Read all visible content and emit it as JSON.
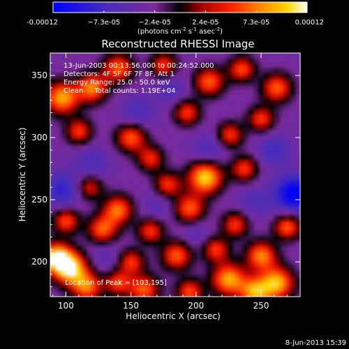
{
  "chart_data": {
    "type": "heatmap",
    "title": "Reconstructed RHESSI Image",
    "xlabel": "Heliocentric X (arcsec)",
    "ylabel": "Heliocentric Y (arcsec)",
    "xlim": [
      88,
      280
    ],
    "ylim": [
      172,
      368
    ],
    "xticks": [
      "100",
      "150",
      "200",
      "250"
    ],
    "yticks": [
      "200",
      "250",
      "300",
      "350"
    ],
    "colorbar": {
      "ticks": [
        "-0.00012",
        "−7.3e-05",
        "−2.4e-05",
        "2.4e-05",
        "7.3e-05",
        "0.00012"
      ],
      "label_html": "(photons cm<tspan baseline-shift='super' font-size='7'>-2</tspan> s<tspan baseline-shift='super' font-size='7'>-1</tspan> asec<tspan baseline-shift='super' font-size='7'>-2</tspan>)",
      "label_parts": [
        "(photons cm",
        "-2",
        " s",
        "-1",
        " asec",
        "-2",
        ")"
      ],
      "range": [
        -0.00012,
        0.00012
      ]
    },
    "annotations": [
      "13-Jun-2003 00:13:56.000 to 00:24:52.000",
      "Detectors: 4F 5F 6F 7F 8F, Att 1",
      "Energy Range: 25.0 - 50.0 keV",
      "Clean     Total counts: 1.19E+04",
      "Location of Peak = [103,195]"
    ],
    "peak": [
      103,
      195
    ],
    "sources": [
      {
        "x": 103,
        "y": 195,
        "v": 1.0,
        "s": 9
      },
      {
        "x": 92,
        "y": 204,
        "v": 0.85,
        "s": 8
      },
      {
        "x": 116,
        "y": 180,
        "v": 0.6,
        "s": 8
      },
      {
        "x": 97,
        "y": 332,
        "v": 0.75,
        "s": 9
      },
      {
        "x": 120,
        "y": 340,
        "v": 0.65,
        "s": 8
      },
      {
        "x": 140,
        "y": 356,
        "v": 0.55,
        "s": 8
      },
      {
        "x": 175,
        "y": 358,
        "v": 0.45,
        "s": 7
      },
      {
        "x": 210,
        "y": 345,
        "v": 0.55,
        "s": 8
      },
      {
        "x": 235,
        "y": 355,
        "v": 0.5,
        "s": 7
      },
      {
        "x": 262,
        "y": 340,
        "v": 0.55,
        "s": 8
      },
      {
        "x": 250,
        "y": 315,
        "v": 0.45,
        "s": 7
      },
      {
        "x": 193,
        "y": 320,
        "v": 0.45,
        "s": 7
      },
      {
        "x": 110,
        "y": 305,
        "v": 0.45,
        "s": 7
      },
      {
        "x": 150,
        "y": 300,
        "v": 0.55,
        "s": 8
      },
      {
        "x": 226,
        "y": 302,
        "v": 0.45,
        "s": 7
      },
      {
        "x": 165,
        "y": 283,
        "v": 0.4,
        "s": 7
      },
      {
        "x": 207,
        "y": 268,
        "v": 0.9,
        "s": 9
      },
      {
        "x": 178,
        "y": 262,
        "v": 0.45,
        "s": 7
      },
      {
        "x": 237,
        "y": 275,
        "v": 0.45,
        "s": 7
      },
      {
        "x": 118,
        "y": 260,
        "v": 0.35,
        "s": 7
      },
      {
        "x": 140,
        "y": 242,
        "v": 0.6,
        "s": 8
      },
      {
        "x": 195,
        "y": 243,
        "v": 0.55,
        "s": 8
      },
      {
        "x": 100,
        "y": 233,
        "v": 0.5,
        "s": 7
      },
      {
        "x": 128,
        "y": 226,
        "v": 0.55,
        "s": 8
      },
      {
        "x": 230,
        "y": 230,
        "v": 0.45,
        "s": 7
      },
      {
        "x": 270,
        "y": 228,
        "v": 0.55,
        "s": 7
      },
      {
        "x": 165,
        "y": 225,
        "v": 0.45,
        "s": 7
      },
      {
        "x": 185,
        "y": 205,
        "v": 0.55,
        "s": 8
      },
      {
        "x": 215,
        "y": 210,
        "v": 0.45,
        "s": 7
      },
      {
        "x": 250,
        "y": 205,
        "v": 0.65,
        "s": 8
      },
      {
        "x": 150,
        "y": 200,
        "v": 0.45,
        "s": 7
      },
      {
        "x": 225,
        "y": 186,
        "v": 0.75,
        "s": 9
      },
      {
        "x": 262,
        "y": 183,
        "v": 0.8,
        "s": 9
      },
      {
        "x": 245,
        "y": 176,
        "v": 0.7,
        "s": 8
      },
      {
        "x": 160,
        "y": 178,
        "v": 0.55,
        "s": 8
      },
      {
        "x": 195,
        "y": 176,
        "v": 0.5,
        "s": 7
      },
      {
        "x": 140,
        "y": 183,
        "v": 0.45,
        "s": 7
      },
      {
        "x": 275,
        "y": 255,
        "v": -0.8,
        "s": 10
      },
      {
        "x": 97,
        "y": 258,
        "v": -0.45,
        "s": 10
      },
      {
        "x": 260,
        "y": 290,
        "v": -0.35,
        "s": 9
      },
      {
        "x": 155,
        "y": 320,
        "v": -0.3,
        "s": 9
      },
      {
        "x": 210,
        "y": 290,
        "v": -0.3,
        "s": 9
      },
      {
        "x": 120,
        "y": 280,
        "v": -0.3,
        "s": 9
      },
      {
        "x": 170,
        "y": 245,
        "v": -0.2,
        "s": 9
      },
      {
        "x": 245,
        "y": 248,
        "v": -0.25,
        "s": 9
      },
      {
        "x": 180,
        "y": 340,
        "v": -0.25,
        "s": 9
      },
      {
        "x": 130,
        "y": 205,
        "v": -0.2,
        "s": 9
      },
      {
        "x": 200,
        "y": 222,
        "v": -0.2,
        "s": 8
      }
    ]
  },
  "footer": {
    "timestamp": "8-Jun-2013 15:39"
  }
}
